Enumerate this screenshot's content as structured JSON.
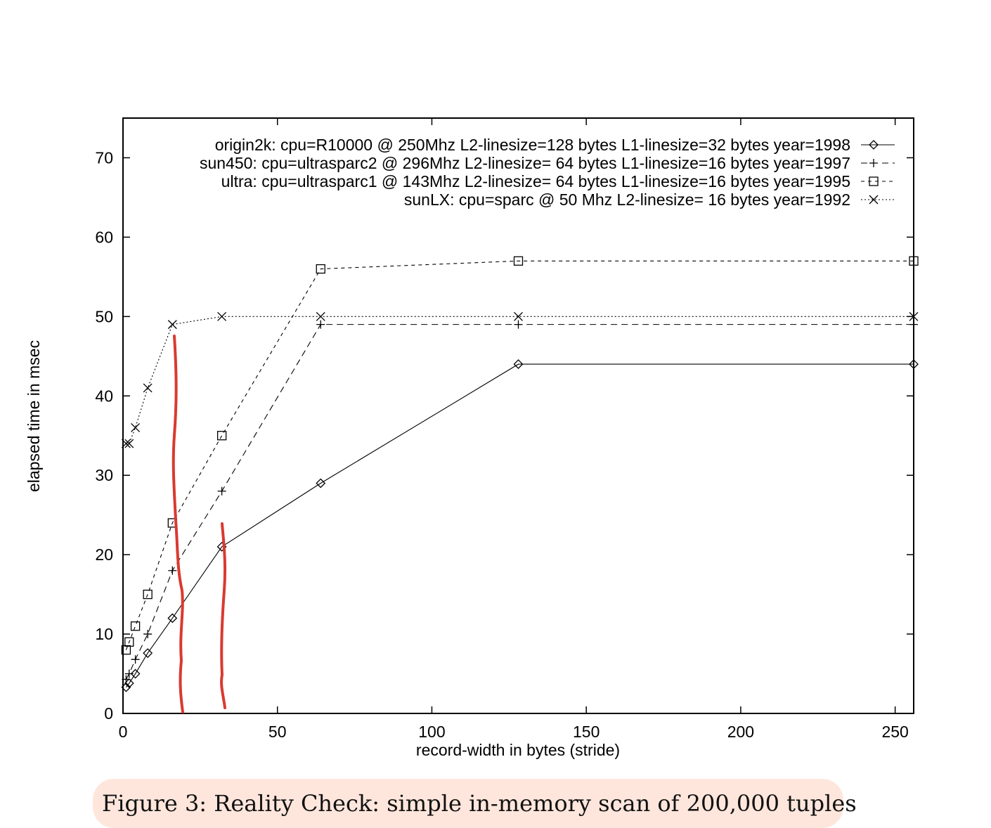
{
  "chart_data": {
    "type": "line",
    "xlabel": "record-width in bytes (stride)",
    "ylabel": "elapsed time in msec",
    "xlim": [
      0,
      256
    ],
    "ylim": [
      0,
      75
    ],
    "xticks": [
      0,
      50,
      100,
      150,
      200,
      250
    ],
    "yticks": [
      0,
      10,
      20,
      30,
      40,
      50,
      60,
      70
    ],
    "grid": false,
    "legend_position": "top-right",
    "series": [
      {
        "name": "origin2k: cpu=R10000 @ 250Mhz L2-linesize=128 bytes L1-linesize=32 bytes year=1998",
        "marker": "diamond",
        "line": "solid",
        "x": [
          1,
          2,
          4,
          8,
          16,
          32,
          64,
          128,
          256
        ],
        "y": [
          3.3,
          3.8,
          5,
          7.6,
          12,
          21,
          29,
          44,
          44
        ]
      },
      {
        "name": "sun450: cpu=ultrasparc2 @ 296Mhz L2-linesize= 64 bytes L1-linesize=16 bytes year=1997",
        "marker": "plus",
        "line": "dashed",
        "x": [
          1,
          2,
          4,
          8,
          16,
          32,
          64,
          128,
          256
        ],
        "y": [
          4.3,
          5,
          6.8,
          10,
          18,
          28,
          49,
          49,
          49
        ]
      },
      {
        "name": "ultra: cpu=ultrasparc1 @ 143Mhz L2-linesize= 64 bytes L1-linesize=16 bytes year=1995",
        "marker": "square",
        "line": "short-dashed",
        "x": [
          1,
          2,
          4,
          8,
          16,
          32,
          64,
          128,
          256
        ],
        "y": [
          8,
          9,
          11,
          15,
          24,
          35,
          56,
          57,
          57
        ]
      },
      {
        "name": "sunLX: cpu=sparc @ 50 Mhz L2-linesize= 16 bytes year=1992",
        "marker": "cross",
        "line": "dotted",
        "x": [
          1,
          2,
          4,
          8,
          16,
          32,
          64,
          128,
          256
        ],
        "y": [
          34,
          34,
          36,
          41,
          49,
          50,
          50,
          50,
          50
        ]
      }
    ]
  },
  "annotations": {
    "color": "#d93a30",
    "description": "two hand-drawn red vertical strokes"
  },
  "caption": {
    "text": "Figure 3: Reality Check: simple in-memory scan of 200,000 tuples"
  }
}
